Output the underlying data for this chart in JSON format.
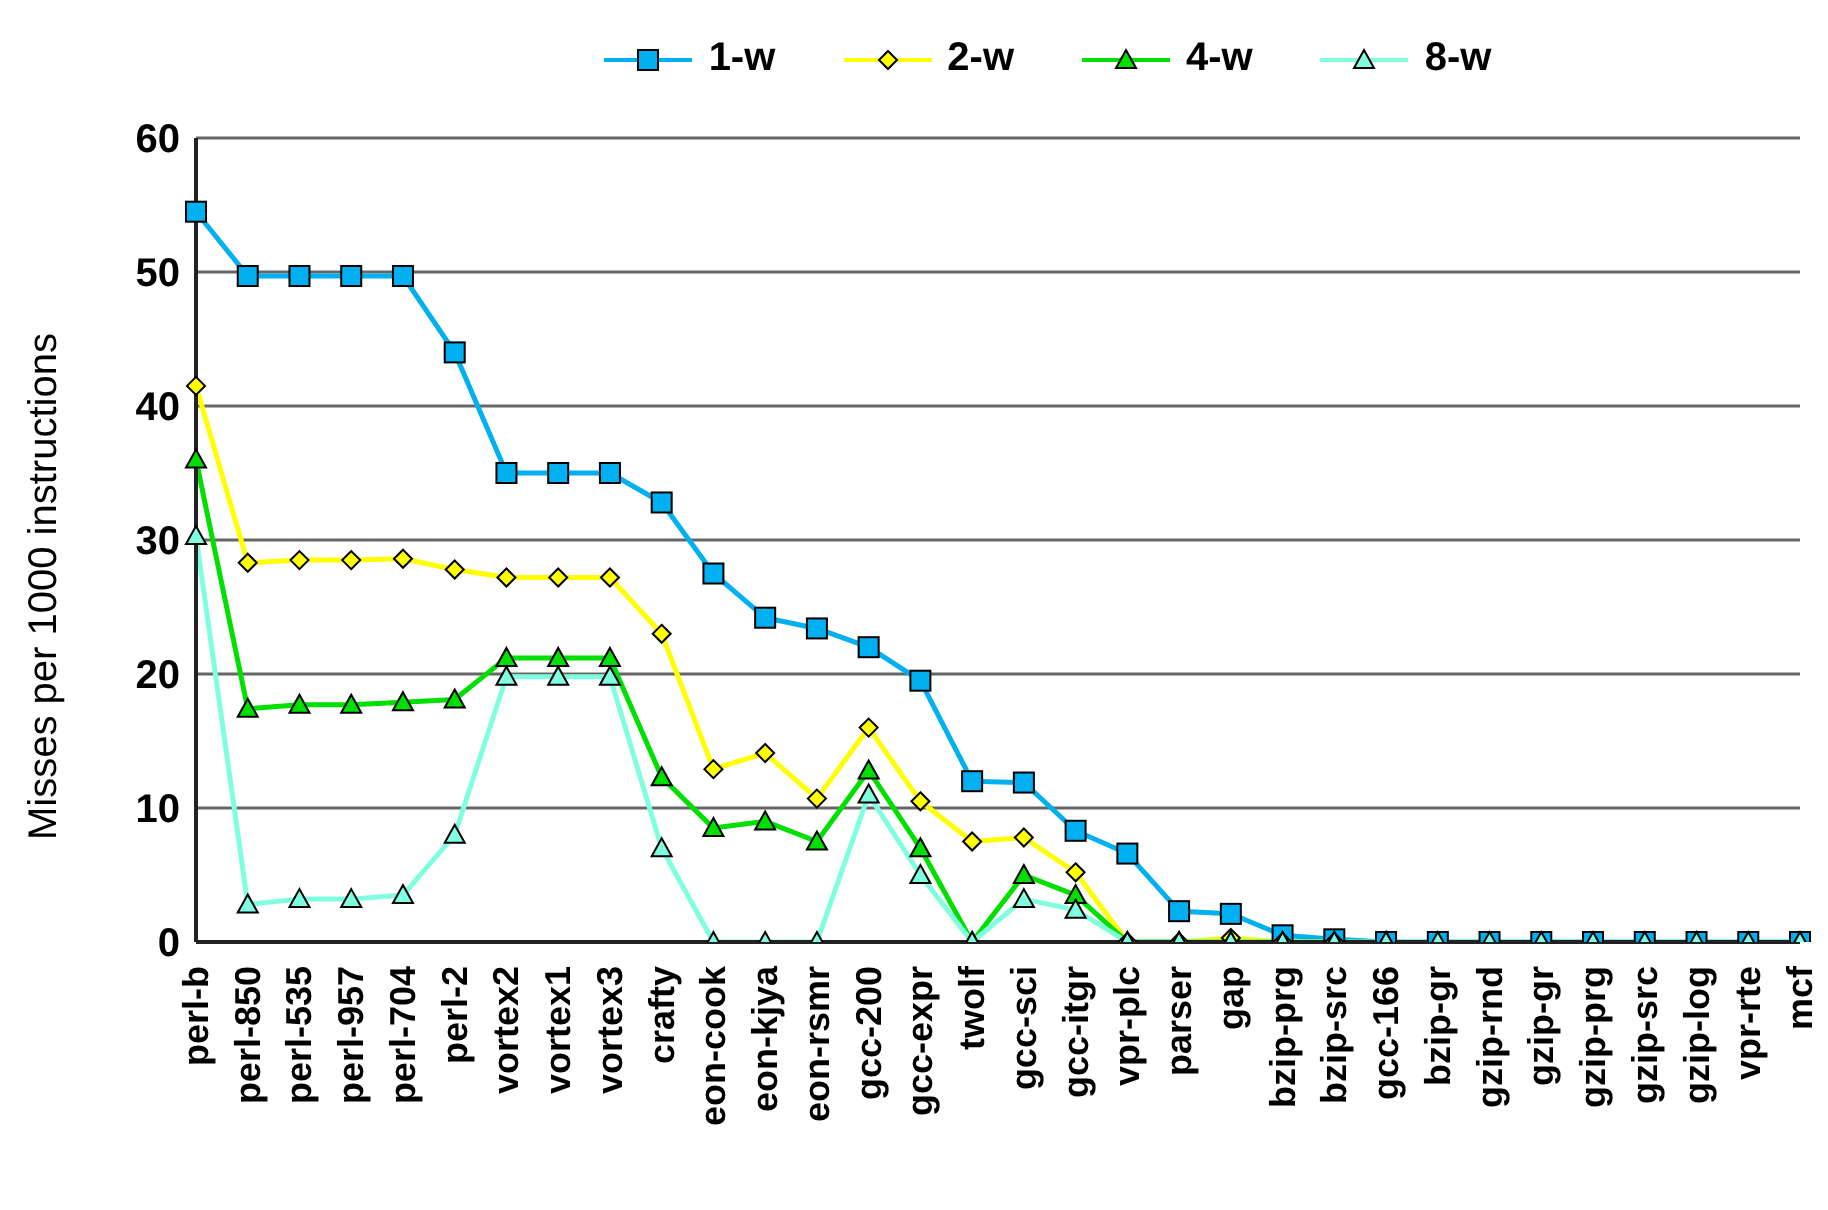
{
  "chart_data": {
    "type": "line",
    "ylabel": "Misses per 1000 instructions",
    "categories": [
      "perl-b",
      "perl-850",
      "perl-535",
      "perl-957",
      "perl-704",
      "perl-2",
      "vortex2",
      "vortex1",
      "vortex3",
      "crafty",
      "eon-cook",
      "eon-kjya",
      "eon-rsmr",
      "gcc-200",
      "gcc-expr",
      "twolf",
      "gcc-sci",
      "gcc-itgr",
      "vpr-plc",
      "parser",
      "gap",
      "bzip-prg",
      "bzip-src",
      "gcc-166",
      "bzip-gr",
      "gzip-rnd",
      "gzip-gr",
      "gzip-prg",
      "gzip-src",
      "gzip-log",
      "vpr-rte",
      "mcf"
    ],
    "series": [
      {
        "name": "1-w",
        "color": "#00b0f0",
        "marker": "square",
        "values": [
          54.5,
          49.7,
          49.7,
          49.7,
          49.7,
          44,
          35,
          35,
          35,
          32.8,
          27.5,
          24.2,
          23.4,
          22,
          19.5,
          12,
          11.9,
          8.3,
          6.6,
          2.3,
          2.1,
          0.5,
          0.2,
          0,
          0,
          0,
          0,
          0,
          0,
          0,
          0,
          0
        ]
      },
      {
        "name": "2-w",
        "color": "#ffff00",
        "marker": "diamond",
        "values": [
          41.5,
          28.3,
          28.5,
          28.5,
          28.6,
          27.8,
          27.2,
          27.2,
          27.2,
          23,
          12.9,
          14.1,
          10.7,
          16,
          10.5,
          7.5,
          7.8,
          5.2,
          0,
          0,
          0.3,
          0,
          0,
          null,
          null,
          null,
          null,
          null,
          null,
          null,
          null,
          null
        ]
      },
      {
        "name": "4-w",
        "color": "#00e000",
        "marker": "triangle",
        "values": [
          36,
          17.4,
          17.7,
          17.7,
          17.9,
          18.1,
          21.2,
          21.2,
          21.2,
          12.3,
          8.5,
          9,
          7.5,
          12.8,
          7,
          0,
          5,
          3.5,
          0,
          0,
          0,
          0,
          0,
          0,
          null,
          null,
          null,
          null,
          null,
          null,
          null,
          null
        ]
      },
      {
        "name": "8-w",
        "color": "#80ffe0",
        "marker": "triangle",
        "values": [
          30.3,
          2.8,
          3.2,
          3.2,
          3.5,
          8,
          19.8,
          19.8,
          19.8,
          7,
          0,
          0,
          0,
          11,
          5,
          0,
          3.2,
          2.4,
          0,
          0,
          0,
          0,
          0,
          0,
          0,
          0,
          0,
          0,
          0,
          0,
          0,
          0
        ]
      }
    ],
    "ylim": [
      0,
      60
    ],
    "yticks": [
      0,
      10,
      20,
      30,
      40,
      50,
      60
    ],
    "grid": "y",
    "legend": "top"
  }
}
